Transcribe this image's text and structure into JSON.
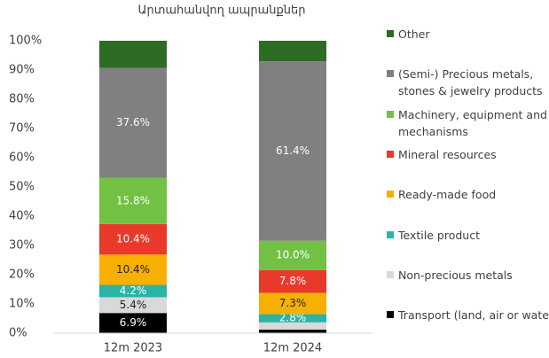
{
  "chart_data": {
    "type": "stacked_bar",
    "title": "Արտահանվող ապրանքներ",
    "categories": [
      "12m 2023",
      "12m 2024"
    ],
    "ylim": [
      0,
      100
    ],
    "yticks": [
      {
        "value": 0,
        "label": "0%"
      },
      {
        "value": 10,
        "label": "10%"
      },
      {
        "value": 20,
        "label": "20%"
      },
      {
        "value": 30,
        "label": "30%"
      },
      {
        "value": 40,
        "label": "40%"
      },
      {
        "value": 50,
        "label": "50%"
      },
      {
        "value": 60,
        "label": "60%"
      },
      {
        "value": 70,
        "label": "70%"
      },
      {
        "value": 80,
        "label": "80%"
      },
      {
        "value": 90,
        "label": "90%"
      },
      {
        "value": 100,
        "label": "100%"
      }
    ],
    "legend": "right",
    "series": [
      {
        "name": "Transport (land, air or water)",
        "color": "#000000",
        "values": [
          6.9,
          1.2
        ],
        "value_labels": [
          "6.9%",
          null
        ]
      },
      {
        "name": "Non-precious metals",
        "color": "#d9d9d9",
        "values": [
          5.4,
          2.5
        ],
        "value_labels": [
          "5.4%",
          null
        ]
      },
      {
        "name": "Textile product",
        "color": "#2ab3a6",
        "values": [
          4.2,
          2.8
        ],
        "value_labels": [
          "4.2%",
          "2.8%"
        ]
      },
      {
        "name": "Ready-made food",
        "color": "#f7b000",
        "values": [
          10.4,
          7.3
        ],
        "value_labels": [
          "10.4%",
          "7.3%"
        ]
      },
      {
        "name": "Mineral resources",
        "color": "#e8392a",
        "values": [
          10.4,
          7.8
        ],
        "value_labels": [
          "10.4%",
          "7.8%"
        ]
      },
      {
        "name": "Machinery, equipment and mechanisms",
        "color": "#72c144",
        "values": [
          15.8,
          10.0
        ],
        "value_labels": [
          "15.8%",
          "10.0%"
        ]
      },
      {
        "name": "(Semi-) Precious metals, stones & jewelry products",
        "color": "#808080",
        "values": [
          37.6,
          61.4
        ],
        "value_labels": [
          "37.6%",
          "61.4%"
        ]
      },
      {
        "name": "Other",
        "color": "#2e6b25",
        "values": [
          9.3,
          7.0
        ],
        "value_labels": [
          null,
          null
        ]
      }
    ]
  }
}
